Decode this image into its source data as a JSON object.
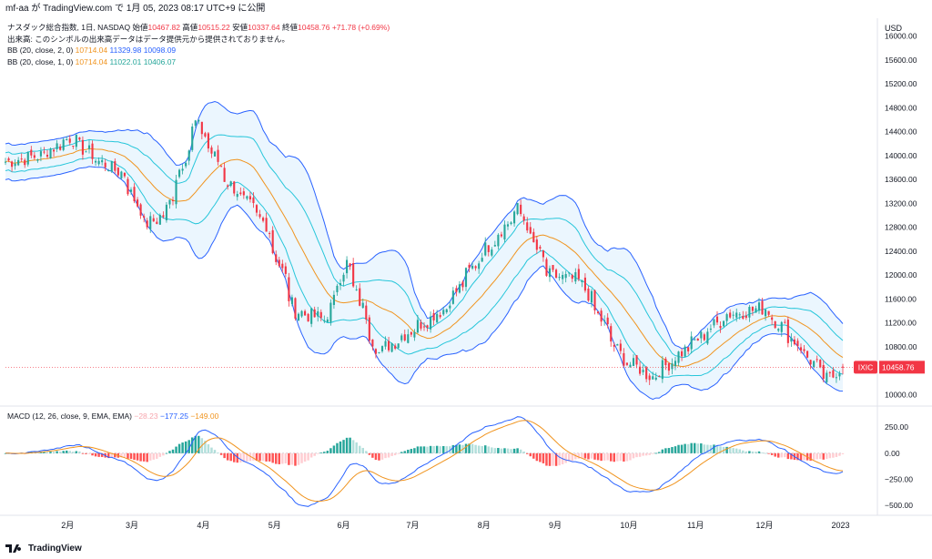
{
  "topbar": {
    "text": "mf-aa が TradingView.com で 1月 05, 2023 08:17 UTC+9 に公開"
  },
  "legend": {
    "title": "ナスダック総合指数, 1日, NASDAQ",
    "o_label": "始値",
    "o": "10467.82",
    "h_label": "高値",
    "h": "10515.22",
    "l_label": "安値",
    "l": "10337.64",
    "c_label": "終値",
    "c": "10458.76",
    "change": "+71.78 (+0.69%)",
    "volume_note": "出来高: このシンボルの出来高データはデータ提供元から提供されておりません。",
    "bb1_label": "BB (20, close, 2, 0)",
    "bb1_basis": "10714.04",
    "bb1_upper": "11329.98",
    "bb1_lower": "10098.09",
    "bb2_label": "BB (20, close, 1, 0)",
    "bb2_basis": "10714.04",
    "bb2_upper": "11022.01",
    "bb2_lower": "10406.07",
    "macd_label": "MACD (12, 26, close, 9, EMA, EMA)",
    "macd_hist": "−28.23",
    "macd_line": "−177.25",
    "macd_signal": "−149.00"
  },
  "axis": {
    "currency": "USD",
    "price_ticks": [
      "16000.00",
      "15600.00",
      "15200.00",
      "14800.00",
      "14400.00",
      "14000.00",
      "13600.00",
      "13200.00",
      "12800.00",
      "12400.00",
      "12000.00",
      "11600.00",
      "11200.00",
      "10800.00",
      "10400.00",
      "10000.00"
    ],
    "macd_ticks": [
      "250.00",
      "0.00",
      "−250.00",
      "−500.00"
    ],
    "months": [
      "2月",
      "3月",
      "4月",
      "5月",
      "6月",
      "7月",
      "8月",
      "9月",
      "10月",
      "11月",
      "12月",
      "2023"
    ],
    "symbol": "IXIC",
    "last_price": "10458.76"
  },
  "footer": {
    "brand": "TradingView"
  },
  "colors": {
    "up": "#26a69a",
    "down": "#f23645",
    "upper_band": "#2962ff",
    "inner_band": "#26c6da",
    "basis": "#f0941f",
    "fill": "#e3f2fd"
  },
  "chart_data": [
    {
      "type": "candlestick",
      "title": "ナスダック総合指数, 1日, NASDAQ",
      "ylim": [
        9900,
        16300
      ],
      "x_ticks": [
        "2月",
        "3月",
        "4月",
        "5月",
        "6月",
        "7月",
        "8月",
        "9月",
        "10月",
        "11月",
        "12月",
        "2023"
      ],
      "close_approx": [
        {
          "x": "2022-01-05",
          "y": 13900
        },
        {
          "x": "2022-01-20",
          "y": 14000
        },
        {
          "x": "2022-02-02",
          "y": 14300
        },
        {
          "x": "2022-02-15",
          "y": 13900
        },
        {
          "x": "2022-02-25",
          "y": 13700
        },
        {
          "x": "2022-03-07",
          "y": 12850
        },
        {
          "x": "2022-03-15",
          "y": 13000
        },
        {
          "x": "2022-03-29",
          "y": 14550
        },
        {
          "x": "2022-04-12",
          "y": 13550
        },
        {
          "x": "2022-04-28",
          "y": 12850
        },
        {
          "x": "2022-05-11",
          "y": 11400
        },
        {
          "x": "2022-05-24",
          "y": 11250
        },
        {
          "x": "2022-06-02",
          "y": 12200
        },
        {
          "x": "2022-06-16",
          "y": 10700
        },
        {
          "x": "2022-07-01",
          "y": 11100
        },
        {
          "x": "2022-07-15",
          "y": 11450
        },
        {
          "x": "2022-08-01",
          "y": 12400
        },
        {
          "x": "2022-08-16",
          "y": 13100
        },
        {
          "x": "2022-08-29",
          "y": 12000
        },
        {
          "x": "2022-09-12",
          "y": 11900
        },
        {
          "x": "2022-09-30",
          "y": 10600
        },
        {
          "x": "2022-10-13",
          "y": 10300
        },
        {
          "x": "2022-11-01",
          "y": 10900
        },
        {
          "x": "2022-11-15",
          "y": 11350
        },
        {
          "x": "2022-12-01",
          "y": 11450
        },
        {
          "x": "2022-12-14",
          "y": 10900
        },
        {
          "x": "2022-12-28",
          "y": 10250
        },
        {
          "x": "2023-01-04",
          "y": 10458.76
        }
      ],
      "last": {
        "open": 10467.82,
        "high": 10515.22,
        "low": 10337.64,
        "close": 10458.76,
        "change": 71.78,
        "change_pct": 0.69
      },
      "overlays": [
        {
          "name": "BB (20, close, 2, 0)",
          "basis": 10714.04,
          "upper": 11329.98,
          "lower": 10098.09
        },
        {
          "name": "BB (20, close, 1, 0)",
          "basis": 10714.04,
          "upper": 11022.01,
          "lower": 10406.07
        }
      ]
    },
    {
      "type": "line",
      "title": "MACD (12, 26, close, 9, EMA, EMA)",
      "ylim": [
        -560,
        330
      ],
      "series": [
        {
          "name": "MACD",
          "last": -177.25
        },
        {
          "name": "Signal",
          "last": -149.0
        },
        {
          "name": "Histogram",
          "last": -28.23
        }
      ]
    }
  ]
}
